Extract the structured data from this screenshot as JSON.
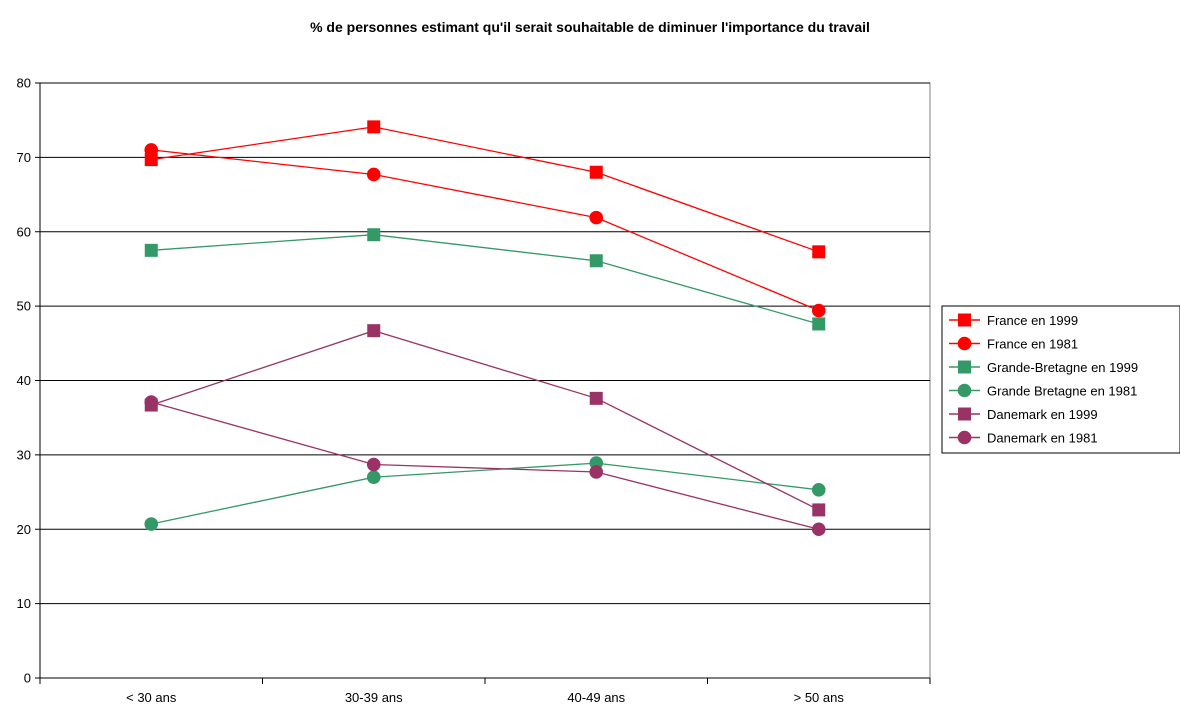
{
  "chart_data": {
    "type": "line",
    "title": "% de personnes estimant qu'il serait souhaitable de diminuer l'importance du travail",
    "xlabel": "",
    "ylabel": "",
    "categories": [
      "< 30 ans",
      "30-39 ans",
      "40-49 ans",
      "> 50 ans"
    ],
    "ylim": [
      0,
      80
    ],
    "yticks": [
      "0",
      "10",
      "20",
      "30",
      "40",
      "50",
      "60",
      "70",
      "80"
    ],
    "grid": true,
    "legend_position": "right",
    "series": [
      {
        "name": "France en 1999",
        "color": "#ff0000",
        "marker": "square",
        "values": [
          69.7,
          74.1,
          68.0,
          57.3
        ]
      },
      {
        "name": "France en 1981",
        "color": "#ff0000",
        "marker": "circle",
        "values": [
          71.0,
          67.7,
          61.9,
          49.4
        ]
      },
      {
        "name": "Grande-Bretagne en 1999",
        "color": "#339966",
        "marker": "square",
        "values": [
          57.5,
          59.6,
          56.1,
          47.6
        ]
      },
      {
        "name": "Grande Bretagne en 1981",
        "color": "#339966",
        "marker": "circle",
        "values": [
          20.7,
          27.0,
          28.9,
          25.3
        ]
      },
      {
        "name": "Danemark en 1999",
        "color": "#993366",
        "marker": "square",
        "values": [
          36.7,
          46.7,
          37.6,
          22.6
        ]
      },
      {
        "name": "Danemark en 1981",
        "color": "#993366",
        "marker": "circle",
        "values": [
          37.1,
          28.7,
          27.7,
          20.0
        ]
      }
    ]
  }
}
